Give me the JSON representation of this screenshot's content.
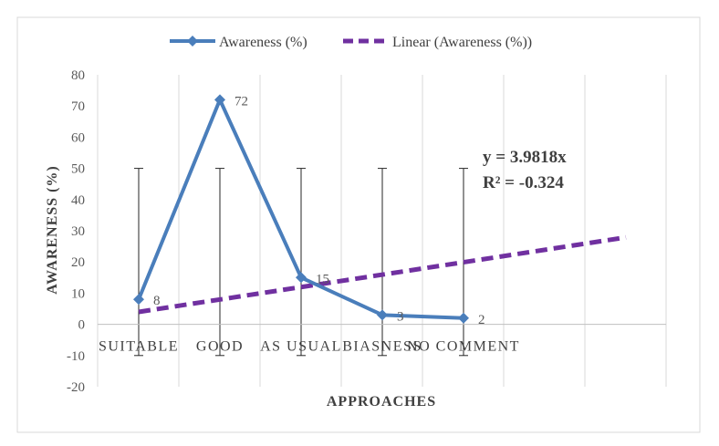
{
  "chart_data": {
    "type": "line",
    "categories": [
      "SUITABLE",
      "GOOD",
      "AS USUAL",
      "BIASNESS",
      "NO COMMENT"
    ],
    "series": [
      {
        "name": "Awareness (%)",
        "values": [
          8,
          72,
          15,
          3,
          2
        ],
        "color": "#4a7ebb",
        "error_bars": {
          "low": -10,
          "high": 50
        }
      }
    ],
    "trendline": {
      "name": "Linear (Awareness (%))",
      "type": "linear",
      "slope": 3.9818,
      "color": "#7030a0",
      "equation": "y = 3.9818x",
      "r_squared": "R² = -0.324"
    },
    "data_labels": [
      "8",
      "72",
      "15",
      "3",
      "2"
    ],
    "xlabel": "APPROACHES",
    "ylabel": "AWARENESS (%)",
    "ylim": [
      -20,
      80
    ],
    "yticks": [
      "-20",
      "-10",
      "0",
      "10",
      "20",
      "30",
      "40",
      "50",
      "60",
      "70",
      "80"
    ],
    "grid": "vertical",
    "legend_position": "top"
  }
}
